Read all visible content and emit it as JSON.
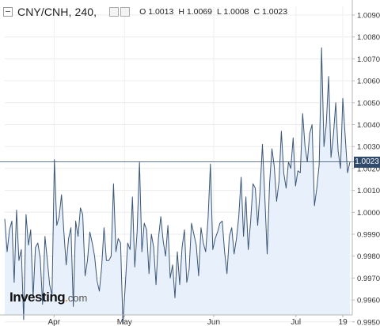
{
  "header": {
    "symbol": "CNY/CNH, 240,",
    "ohlc": [
      {
        "k": "O",
        "v": "1.0013"
      },
      {
        "k": "H",
        "v": "1.0069"
      },
      {
        "k": "L",
        "v": "1.0008"
      },
      {
        "k": "C",
        "v": "1.0023"
      }
    ]
  },
  "logo": {
    "main": "Investing",
    "dot": ".",
    "suffix": "com"
  },
  "colors": {
    "line": "#3b5676",
    "fill": "#e8f1fb",
    "last_price_bg": "#2f4a6b",
    "grid": "#e6e6e6"
  },
  "chart_data": {
    "type": "area",
    "title": "CNY/CNH, 240,",
    "ylim": [
      0.9945,
      1.0095
    ],
    "y_ticks": [
      1.009,
      1.008,
      1.007,
      1.006,
      1.005,
      1.004,
      1.003,
      1.002,
      1.001,
      1.0,
      0.999,
      0.998,
      0.997,
      0.996,
      0.995
    ],
    "y_tick_labels": [
      "1.0090",
      "1.0080",
      "1.0070",
      "1.0060",
      "1.0050",
      "1.0040",
      "1.0030",
      "1.0020",
      "1.0010",
      "1.0000",
      "0.9990",
      "0.9980",
      "0.9970",
      "0.9960",
      "0.9950"
    ],
    "x_ticks": [
      {
        "label": "Apr",
        "x": 21
      },
      {
        "label": "May",
        "x": 51
      },
      {
        "label": "Jun",
        "x": 89
      },
      {
        "label": "Jul",
        "x": 124
      },
      {
        "label": "19",
        "x": 144
      }
    ],
    "xlim": [
      0,
      147
    ],
    "last_price": 1.0023,
    "last_price_label": "1.0023",
    "series": [
      {
        "values": [
          0.9997,
          0.9982,
          0.9992,
          0.9996,
          0.9968,
          1.0001,
          0.9978,
          0.9983,
          0.9951,
          0.9999,
          0.9985,
          0.9992,
          0.9961,
          0.9984,
          0.9986,
          0.9979,
          0.9958,
          0.9989,
          0.9978,
          0.9967,
          0.9962,
          1.0024,
          0.9994,
          0.9998,
          1.0008,
          0.9991,
          0.9976,
          0.9988,
          0.9993,
          0.9957,
          0.9996,
          0.9989,
          1.0002,
          0.9999,
          0.9971,
          0.9978,
          0.9991,
          0.9986,
          0.998,
          0.9969,
          0.9964,
          0.9975,
          0.9993,
          0.9978,
          0.9978,
          0.998,
          1.0013,
          0.9982,
          0.9988,
          0.9986,
          0.9949,
          0.9967,
          0.9986,
          0.9983,
          1.0007,
          0.9975,
          0.9991,
          1.0023,
          0.9982,
          0.9995,
          0.9992,
          0.9972,
          0.999,
          0.9984,
          0.9967,
          0.9988,
          0.9998,
          0.9987,
          0.998,
          0.9994,
          0.997,
          0.9976,
          0.9961,
          0.9982,
          0.9967,
          0.9984,
          0.9992,
          0.9968,
          0.9974,
          0.9995,
          0.999,
          0.9985,
          0.9971,
          0.9993,
          0.9986,
          0.9982,
          0.9997,
          1.0022,
          0.9983,
          0.9988,
          0.9991,
          0.9995,
          0.9996,
          0.9982,
          0.9972,
          0.9989,
          0.9993,
          0.9981,
          0.9988,
          0.9998,
          1.0016,
          0.9989,
          1.0007,
          0.9983,
          0.9996,
          1.0013,
          1.0011,
          0.9994,
          1.001,
          1.0031,
          1.0007,
          0.9981,
          1.0013,
          1.0029,
          1.0021,
          1.0005,
          1.0014,
          1.0037,
          1.0018,
          1.0011,
          1.0023,
          1.002,
          1.0034,
          1.0012,
          1.0019,
          1.0018,
          1.0045,
          1.003,
          1.0023,
          1.0036,
          1.004,
          1.0003,
          1.0011,
          1.0022,
          1.0075,
          1.003,
          1.004,
          1.0062,
          1.0025,
          1.0035,
          1.005,
          1.0028,
          1.002,
          1.0052,
          1.0035,
          1.0018,
          1.0023
        ]
      }
    ]
  }
}
